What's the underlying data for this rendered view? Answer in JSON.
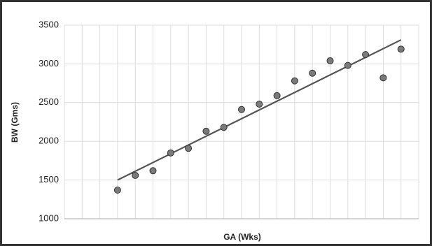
{
  "chart_data": {
    "type": "scatter",
    "y_label": "BW (Gms)",
    "x_label": "GA (Wks)",
    "x": [
      3,
      4,
      5,
      6,
      7,
      8,
      9,
      10,
      11,
      12,
      13,
      14,
      15,
      16,
      17,
      18,
      19
    ],
    "values": [
      1370,
      1560,
      1620,
      1850,
      1910,
      2130,
      2180,
      2410,
      2480,
      2590,
      2780,
      2880,
      3040,
      2980,
      3120,
      2820,
      3190
    ],
    "color": "#7a7a7a",
    "trend": {
      "x": [
        3,
        19
      ],
      "values": [
        1500,
        3310
      ],
      "color": "#555555"
    },
    "xlim": [
      0,
      20
    ],
    "xticks": [
      0,
      1,
      2,
      3,
      4,
      5,
      6,
      7,
      8,
      9,
      10,
      11,
      12,
      13,
      14,
      15,
      16,
      17,
      18,
      19,
      20
    ],
    "ylim": [
      1000,
      3500
    ],
    "yticks": [
      1000,
      1500,
      2000,
      2500,
      3000,
      3500
    ],
    "grid": true
  }
}
